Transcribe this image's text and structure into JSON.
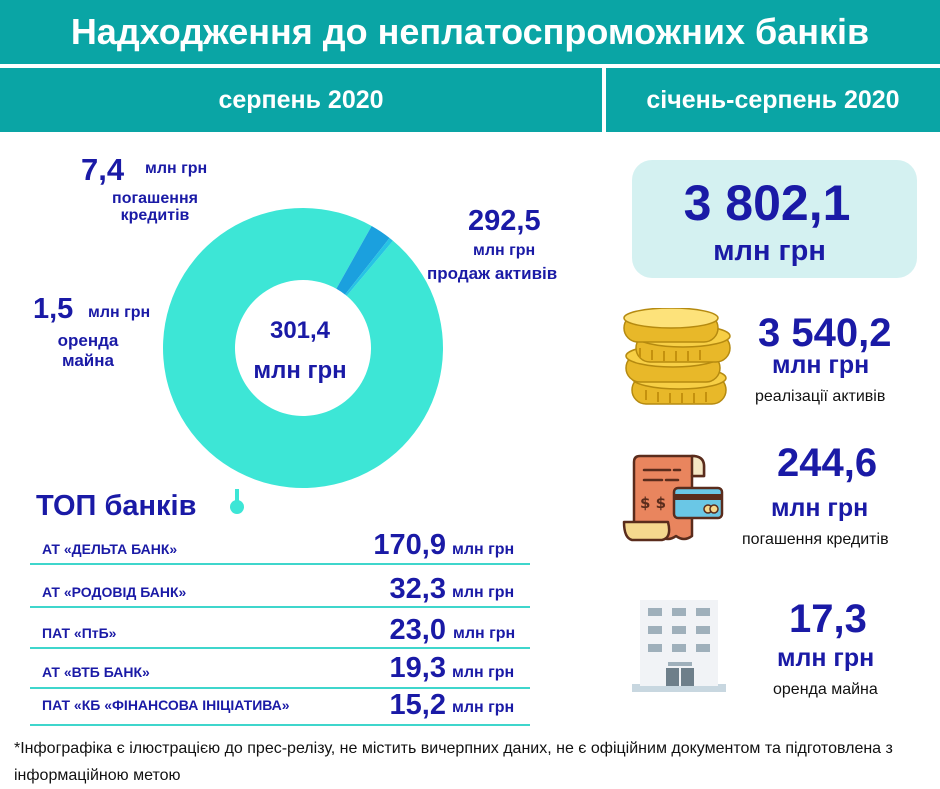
{
  "title": "Надходження до неплатоспроможних банків",
  "tabs": [
    "серпень 2020",
    "січень-серпень 2020"
  ],
  "donut": {
    "center_value": "301,4",
    "center_unit": "млн грн",
    "colors": {
      "assets": "#3de6d6",
      "credits": "#1ba0de",
      "rent": "#26c4e4"
    },
    "segments": [
      {
        "key": "assets",
        "value": 292.5
      },
      {
        "key": "credits",
        "value": 7.4
      },
      {
        "key": "rent",
        "value": 1.5
      }
    ],
    "labels": {
      "credits": {
        "value": "7,4",
        "unit": "млн грн",
        "desc_line1": "погашення",
        "desc_line2": "кредитів"
      },
      "assets": {
        "value": "292,5",
        "unit": "млн грн",
        "desc": "продаж активів"
      },
      "rent": {
        "value": "1,5",
        "unit": "млн грн",
        "desc_line1": "оренда",
        "desc_line2": "майна"
      }
    }
  },
  "top_banks": {
    "heading": "ТОП банків",
    "rows": [
      {
        "name": "АТ «ДЕЛЬТА БАНК»",
        "value": "170,9",
        "unit": "млн грн"
      },
      {
        "name": "АТ «РОДОВІД БАНК»",
        "value": "32,3",
        "unit": "млн грн"
      },
      {
        "name": "ПАТ «ПтБ»",
        "value": "23,0",
        "unit": "млн грн"
      },
      {
        "name": "АТ «ВТБ БАНК»",
        "value": "19,3",
        "unit": "млн грн"
      },
      {
        "name": "ПАТ «КБ «ФІНАНСОВА ІНІЦІАТИВА»",
        "value": "15,2",
        "unit": "млн грн"
      }
    ]
  },
  "total": {
    "value": "3 802,1",
    "unit": "млн грн"
  },
  "stats": [
    {
      "icon": "coins-stack-icon",
      "value": "3 540,2",
      "unit": "млн грн",
      "desc": "реалізації активів"
    },
    {
      "icon": "bill-card-icon",
      "value": "244,6",
      "unit": "млн грн",
      "desc": "погашення кредитів"
    },
    {
      "icon": "office-building-icon",
      "value": "17,3",
      "unit": "млн грн",
      "desc": "оренда майна"
    }
  ],
  "footnote": "*Інфографіка є ілюстрацією до прес-релізу, не містить вичерпних даних, не є офіційним документом та підготовлена з інформаційною метою"
}
